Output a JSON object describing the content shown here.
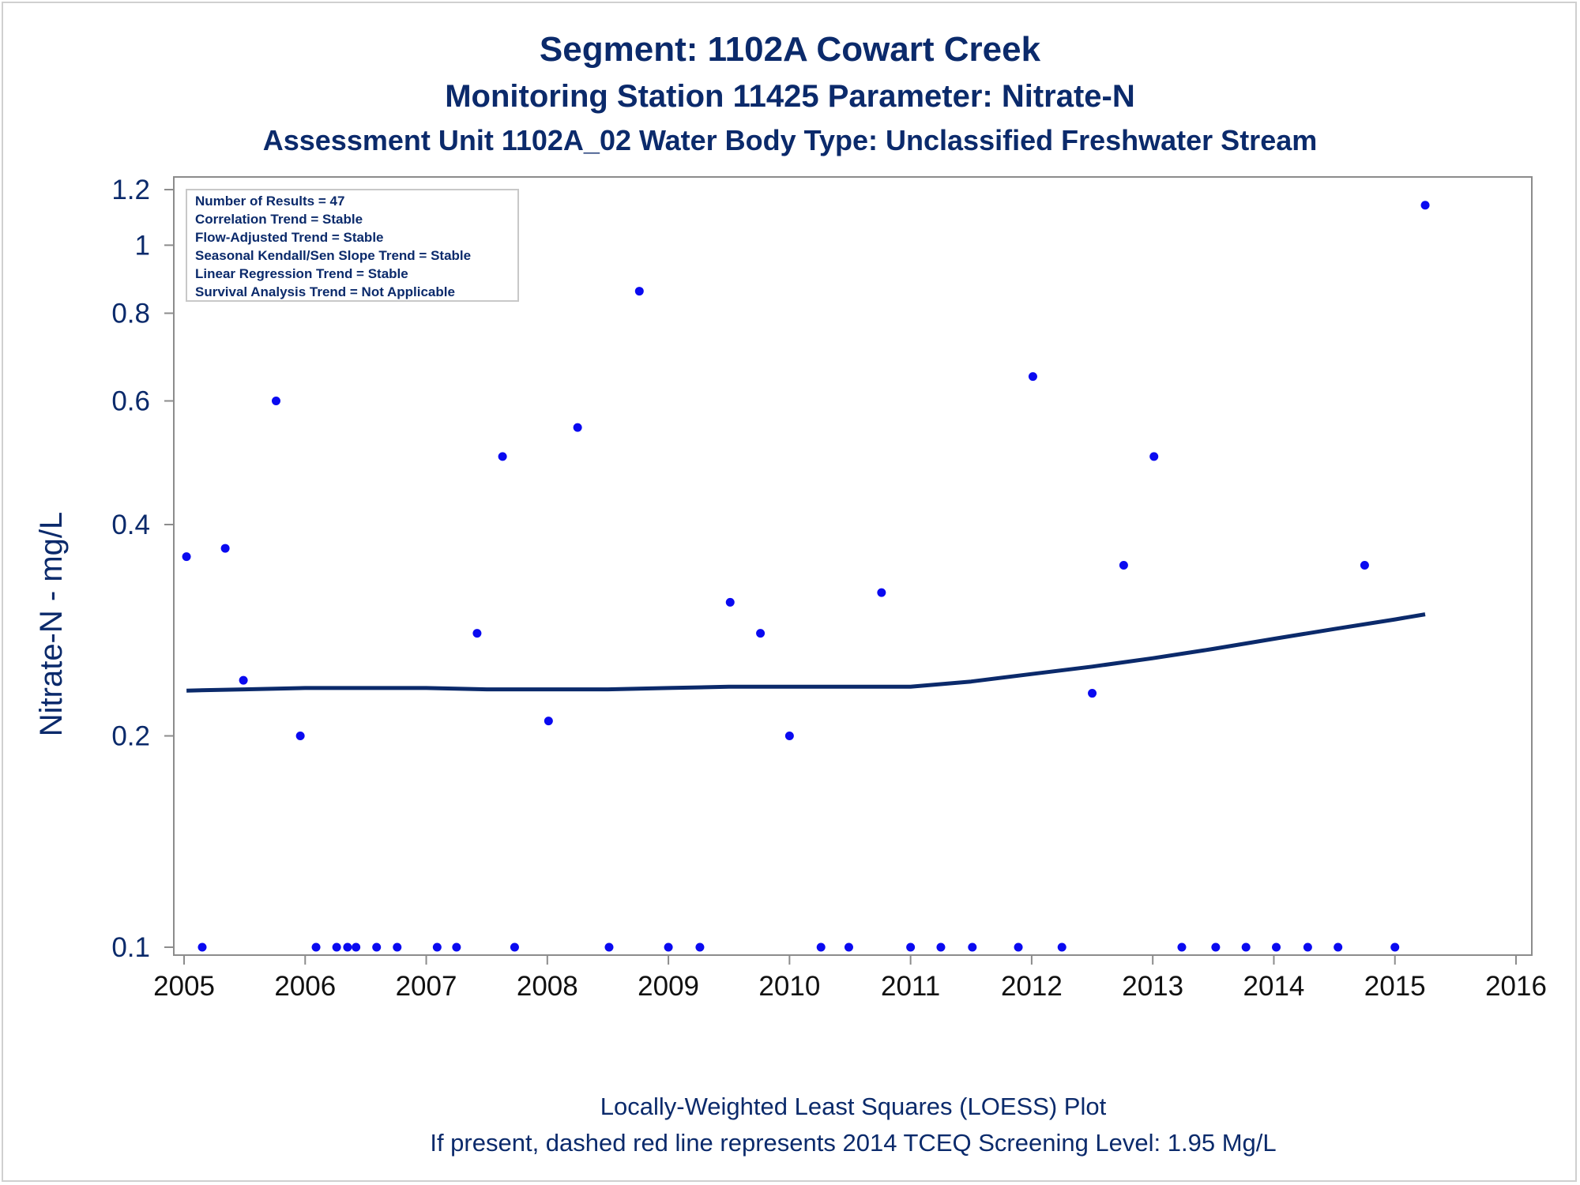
{
  "titles": {
    "line1": "Segment: 1102A  Cowart Creek",
    "line2": "Monitoring Station 11425 Parameter: Nitrate-N",
    "line3": "Assessment Unit 1102A_02   Water Body Type: Unclassified Freshwater Stream"
  },
  "footnotes": {
    "line1": "Locally-Weighted Least Squares (LOESS) Plot",
    "line2": "If present, dashed red line represents 2014 TCEQ Screening Level: 1.95 Mg/L"
  },
  "stats_box": [
    "Number of Results = 47",
    "Correlation Trend = Stable",
    "Flow-Adjusted Trend = Stable",
    "Seasonal Kendall/Sen Slope Trend = Stable",
    "Linear Regression Trend = Stable",
    "Survival Analysis Trend = Not Applicable"
  ],
  "colors": {
    "text": "#0b2a6b",
    "points": "#0a0af0",
    "loess": "#0b2a6b",
    "axis": "#8c8c8c"
  },
  "chart_data": {
    "type": "scatter",
    "title": "Segment: 1102A  Cowart Creek",
    "xlabel": "",
    "ylabel": "Nitrate-N - mg/L",
    "y_scale": "log",
    "xlim": [
      2005,
      2016
    ],
    "ylim": [
      0.1,
      1.2
    ],
    "x_ticks": [
      2005,
      2006,
      2007,
      2008,
      2009,
      2010,
      2011,
      2012,
      2013,
      2014,
      2015,
      2016
    ],
    "y_ticks": [
      0.1,
      0.2,
      0.4,
      0.6,
      0.8,
      1,
      1.2
    ],
    "grid": false,
    "legend": "top-left stats box",
    "series": [
      {
        "type": "scatter",
        "x": [
          2005.02,
          2005.15,
          2005.34,
          2005.49,
          2005.76,
          2005.96,
          2006.09,
          2006.26,
          2006.35,
          2006.42,
          2006.59,
          2006.76,
          2007.09,
          2007.25,
          2007.42,
          2007.63,
          2007.73,
          2008.01,
          2008.25,
          2008.51,
          2008.76,
          2009.0,
          2009.26,
          2009.51,
          2009.76,
          2010.0,
          2010.26,
          2010.49,
          2010.76,
          2011.0,
          2011.25,
          2011.51,
          2011.89,
          2012.01,
          2012.25,
          2012.5,
          2012.76,
          2013.01,
          2013.24,
          2013.52,
          2013.77,
          2014.02,
          2014.28,
          2014.53,
          2014.75,
          2015.0,
          2015.25
        ],
        "y": [
          0.36,
          0.1,
          0.37,
          0.24,
          0.6,
          0.2,
          0.1,
          0.1,
          0.1,
          0.1,
          0.1,
          0.1,
          0.1,
          0.1,
          0.28,
          0.5,
          0.1,
          0.21,
          0.55,
          0.1,
          0.86,
          0.1,
          0.1,
          0.31,
          0.28,
          0.2,
          0.1,
          0.1,
          0.32,
          0.1,
          0.1,
          0.1,
          0.1,
          0.65,
          0.1,
          0.23,
          0.35,
          0.5,
          0.1,
          0.1,
          0.1,
          0.1,
          0.1,
          0.1,
          0.35,
          0.1,
          1.14
        ]
      },
      {
        "type": "line",
        "x": [
          2005.02,
          2005.5,
          2006.0,
          2006.5,
          2007.0,
          2007.5,
          2008.0,
          2008.5,
          2009.0,
          2009.5,
          2010.0,
          2010.5,
          2011.0,
          2011.5,
          2012.0,
          2012.5,
          2013.0,
          2013.5,
          2014.0,
          2014.5,
          2015.0,
          2015.25
        ],
        "y": [
          0.232,
          0.233,
          0.234,
          0.234,
          0.234,
          0.233,
          0.233,
          0.233,
          0.234,
          0.235,
          0.235,
          0.235,
          0.235,
          0.239,
          0.245,
          0.251,
          0.258,
          0.266,
          0.275,
          0.284,
          0.293,
          0.298
        ]
      }
    ]
  }
}
